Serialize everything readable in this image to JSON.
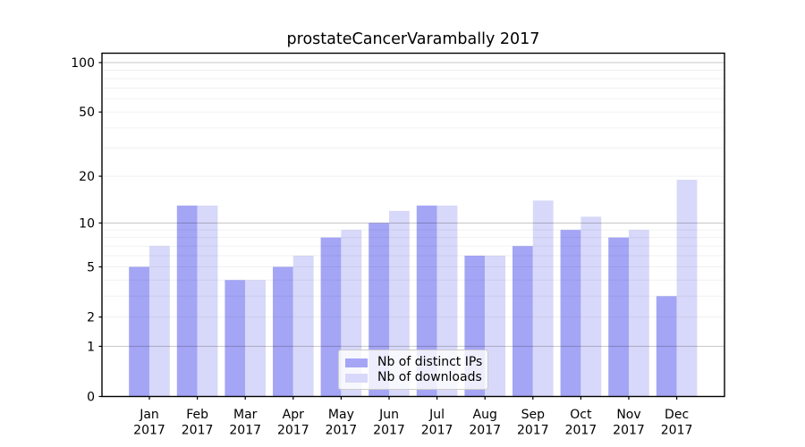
{
  "title": "prostateCancerVarambally 2017",
  "chart_data": {
    "type": "bar",
    "title": "prostateCancerVarambally 2017",
    "year": "2017",
    "months": [
      "Jan",
      "Feb",
      "Mar",
      "Apr",
      "May",
      "Jun",
      "Jul",
      "Aug",
      "Sep",
      "Oct",
      "Nov",
      "Dec"
    ],
    "categories": [
      "Jan 2017",
      "Feb 2017",
      "Mar 2017",
      "Apr 2017",
      "May 2017",
      "Jun 2017",
      "Jul 2017",
      "Aug 2017",
      "Sep 2017",
      "Oct 2017",
      "Nov 2017",
      "Dec 2017"
    ],
    "series": [
      {
        "name": "Nb of distinct IPs",
        "color": "#a5a5f6",
        "values": [
          5,
          13,
          4,
          5,
          8,
          10,
          13,
          6,
          7,
          9,
          8,
          3
        ]
      },
      {
        "name": "Nb of downloads",
        "color": "#d8d8fa",
        "values": [
          7,
          13,
          4,
          6,
          9,
          12,
          13,
          6,
          14,
          11,
          9,
          19
        ]
      }
    ],
    "y_axis": {
      "scale": "log1p",
      "tick_labels": [
        0,
        1,
        2,
        5,
        10,
        20,
        50,
        100
      ],
      "major_gridlines": [
        1,
        10,
        100
      ],
      "minor_gridlines": [
        2,
        3,
        4,
        5,
        6,
        7,
        8,
        9,
        20,
        30,
        40,
        50,
        60,
        70,
        80,
        90
      ],
      "ylim": [
        0,
        115
      ]
    },
    "legend_position": "lower center",
    "grid": true,
    "colors": {
      "axis": "#000000",
      "major_grid_rgba": "rgba(0,0,0,0.22)",
      "minor_grid_rgba": "rgba(0,0,0,0.06)",
      "text": "#000000",
      "background": "#ffffff"
    }
  }
}
